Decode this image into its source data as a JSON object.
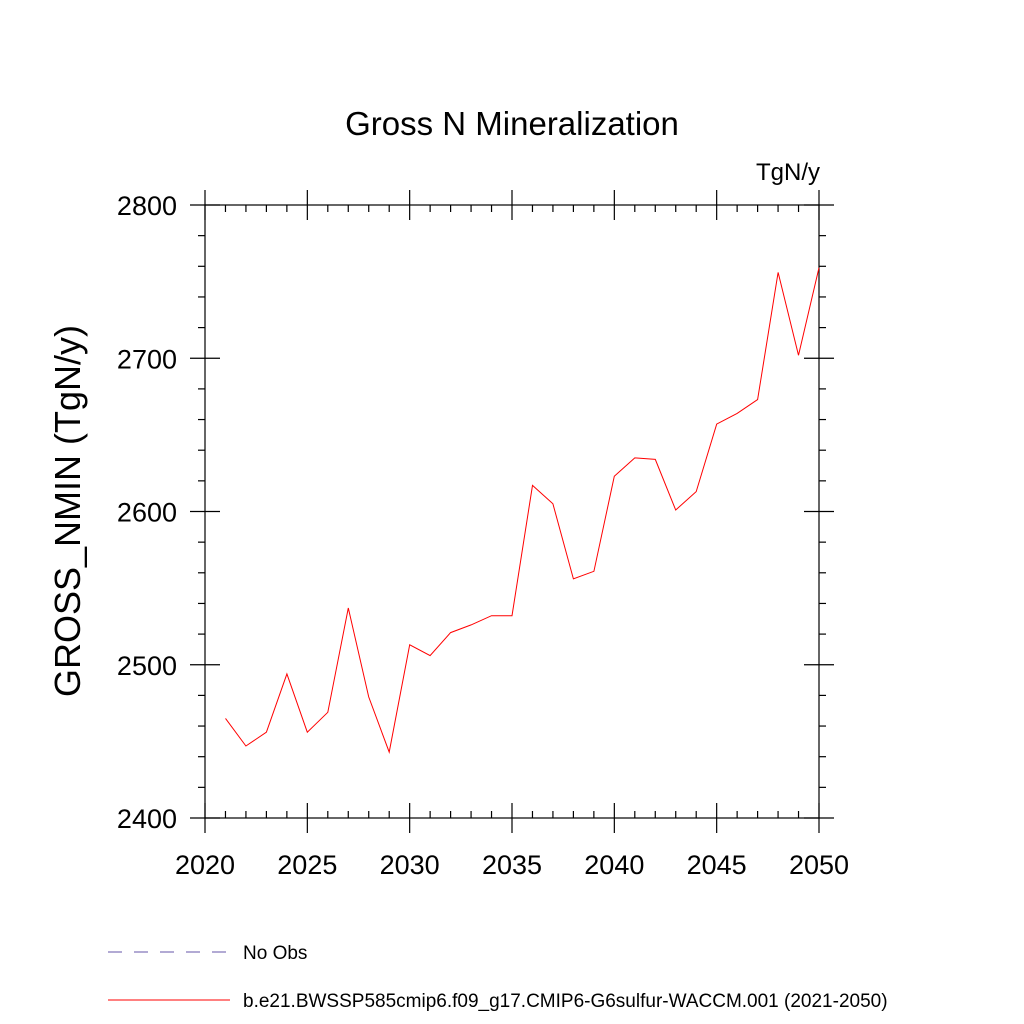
{
  "chart_data": {
    "type": "line",
    "title": "Gross N Mineralization",
    "units": "TgN/y",
    "ylabel": "GROSS_NMIN  (TgN/y)",
    "xlabel": "",
    "xlim": [
      2020,
      2050
    ],
    "ylim": [
      2400,
      2800
    ],
    "x_ticks": [
      2020,
      2025,
      2030,
      2035,
      2040,
      2045,
      2050
    ],
    "y_ticks": [
      2400,
      2500,
      2600,
      2700,
      2800
    ],
    "x_tick_labels": [
      "2020",
      "2025",
      "2030",
      "2035",
      "2040",
      "2045",
      "2050"
    ],
    "y_tick_labels": [
      "2400",
      "2500",
      "2600",
      "2700",
      "2800"
    ],
    "x_minor_step": 1,
    "y_minor_step": 20,
    "grid": false,
    "series": [
      {
        "name": "b.e21.BWSSP585cmip6.f09_g17.CMIP6-G6sulfur-WACCM.001 (2021-2050)",
        "color": "#ff0000",
        "style": "solid",
        "x": [
          2021,
          2022,
          2023,
          2024,
          2025,
          2026,
          2027,
          2028,
          2029,
          2030,
          2031,
          2032,
          2033,
          2034,
          2035,
          2036,
          2037,
          2038,
          2039,
          2040,
          2041,
          2042,
          2043,
          2044,
          2045,
          2046,
          2047,
          2048,
          2049,
          2050
        ],
        "values": [
          2465,
          2447,
          2456,
          2494,
          2456,
          2469,
          2537,
          2479,
          2443,
          2513,
          2506,
          2521,
          2526,
          2532,
          2532,
          2617,
          2605,
          2556,
          2561,
          2623,
          2635,
          2634,
          2601,
          2613,
          2657,
          2664,
          2673,
          2756,
          2702,
          2759
        ]
      }
    ],
    "legend": {
      "placement": "bottom-left",
      "entries": [
        {
          "label": "No Obs",
          "color": "#6655aa",
          "style": "dashed"
        },
        {
          "label": "b.e21.BWSSP585cmip6.f09_g17.CMIP6-G6sulfur-WACCM.001 (2021-2050)",
          "color": "#ff0000",
          "style": "solid"
        }
      ]
    }
  }
}
